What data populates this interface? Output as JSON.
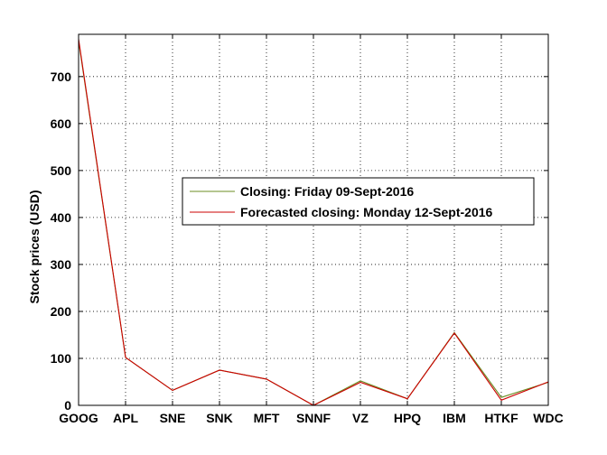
{
  "chart_data": {
    "type": "line",
    "title": "",
    "xlabel": "",
    "ylabel": "Stock prices (USD)",
    "categories": [
      "GOOG",
      "APL",
      "SNE",
      "SNK",
      "MFT",
      "SNNF",
      "VZ",
      "HPQ",
      "IBM",
      "HTKF",
      "WDC"
    ],
    "ylim": [
      0,
      790
    ],
    "yticks": [
      0,
      100,
      200,
      300,
      400,
      500,
      600,
      700
    ],
    "grid": true,
    "legend_position": "center",
    "series": [
      {
        "name": "Closing: Friday 09-Sept-2016",
        "color": "#6b8e23",
        "values": [
          776,
          102,
          32,
          75,
          56,
          0,
          52,
          14,
          155,
          17,
          49
        ]
      },
      {
        "name": "Forecasted closing: Monday 12-Sept-2016",
        "color": "#cc0000",
        "values": [
          780,
          102,
          32,
          75,
          56,
          0,
          49,
          14,
          154,
          11,
          50
        ]
      }
    ]
  }
}
